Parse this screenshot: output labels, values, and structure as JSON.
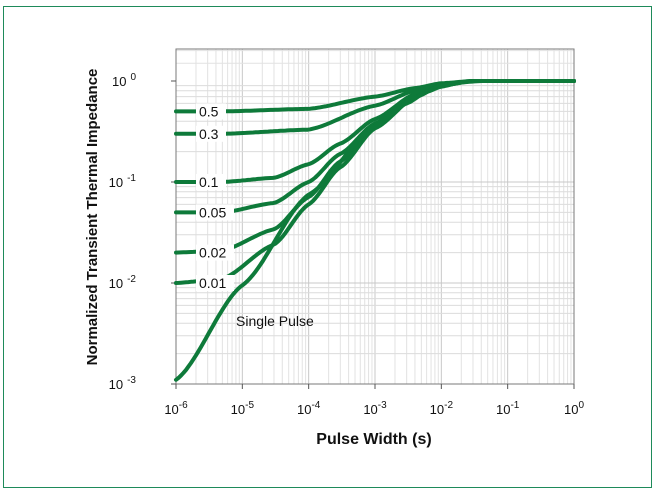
{
  "chart_data": {
    "type": "line",
    "title": "",
    "xlabel": "Pulse Width (s)",
    "ylabel": "Normalized Transient Thermal Impedance",
    "x_scale": "log",
    "y_scale": "log",
    "xlim": [
      1e-06,
      1
    ],
    "ylim": [
      0.001,
      1
    ],
    "grid": true,
    "legend": "none",
    "line_color": "#0e7a3a",
    "x_ticks": [
      {
        "base": "10",
        "exp": "-6"
      },
      {
        "base": "10",
        "exp": "-5"
      },
      {
        "base": "10",
        "exp": "-4"
      },
      {
        "base": "10",
        "exp": "-3"
      },
      {
        "base": "10",
        "exp": "-2"
      },
      {
        "base": "10",
        "exp": "-1"
      },
      {
        "base": "10",
        "exp": "0"
      }
    ],
    "y_ticks": [
      {
        "base": "10",
        "exp": "0"
      },
      {
        "base": "10",
        "exp": "-1"
      },
      {
        "base": "10",
        "exp": "-2"
      },
      {
        "base": "10",
        "exp": "-3"
      }
    ],
    "series": [
      {
        "name": "0.5",
        "x": [
          1e-06,
          5e-06,
          0.0001,
          0.001,
          0.004,
          0.01,
          0.03,
          1
        ],
        "y": [
          0.5,
          0.5,
          0.53,
          0.7,
          0.85,
          0.95,
          1.0,
          1.0
        ]
      },
      {
        "name": "0.3",
        "x": [
          1e-06,
          5e-06,
          0.0001,
          0.001,
          0.004,
          0.01,
          0.03,
          1
        ],
        "y": [
          0.3,
          0.3,
          0.33,
          0.57,
          0.8,
          0.93,
          1.0,
          1.0
        ]
      },
      {
        "name": "0.1",
        "x": [
          1e-06,
          5e-06,
          3e-05,
          0.0001,
          0.0003,
          0.001,
          0.004,
          0.01,
          0.03,
          1
        ],
        "y": [
          0.1,
          0.1,
          0.11,
          0.15,
          0.24,
          0.42,
          0.74,
          0.92,
          1.0,
          1.0
        ]
      },
      {
        "name": "0.05",
        "x": [
          1e-06,
          5e-06,
          3e-05,
          0.0001,
          0.0003,
          0.001,
          0.004,
          0.01,
          0.03,
          1
        ],
        "y": [
          0.05,
          0.05,
          0.062,
          0.1,
          0.19,
          0.38,
          0.72,
          0.91,
          1.0,
          1.0
        ]
      },
      {
        "name": "0.02",
        "x": [
          1e-06,
          5e-06,
          3e-05,
          0.0001,
          0.0003,
          0.001,
          0.004,
          0.01,
          0.03,
          1
        ],
        "y": [
          0.02,
          0.021,
          0.034,
          0.071,
          0.16,
          0.35,
          0.7,
          0.9,
          1.0,
          1.0
        ]
      },
      {
        "name": "0.01",
        "x": [
          1e-06,
          5e-06,
          3e-05,
          0.0001,
          0.0003,
          0.001,
          0.004,
          0.01,
          0.03,
          1
        ],
        "y": [
          0.01,
          0.011,
          0.024,
          0.06,
          0.14,
          0.34,
          0.69,
          0.9,
          1.0,
          1.0
        ]
      },
      {
        "name": "Single Pulse",
        "x": [
          1e-06,
          1e-05,
          0.0001,
          0.001,
          0.003,
          0.006,
          0.01,
          0.02,
          0.04,
          1
        ],
        "y": [
          0.0011,
          0.0095,
          0.075,
          0.36,
          0.6,
          0.78,
          0.88,
          0.97,
          1.0,
          1.0
        ]
      }
    ]
  }
}
